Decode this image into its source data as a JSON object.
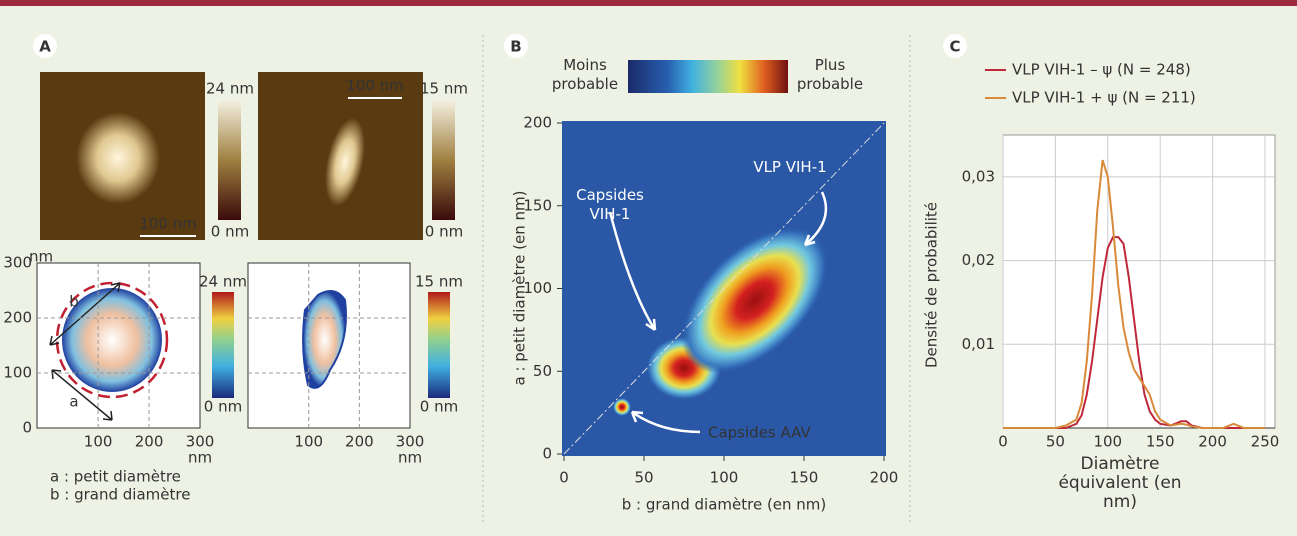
{
  "panel_a": {
    "label": "A",
    "images": [
      {
        "scale_bar": "100 nm",
        "colorbar_max": "24 nm",
        "colorbar_min": "0 nm"
      },
      {
        "scale_bar": "100 nm",
        "colorbar_max": "15 nm",
        "colorbar_min": "0 nm"
      }
    ],
    "contours": [
      {
        "colorbar_max": "24 nm",
        "colorbar_min": "0 nm",
        "xticks": [
          100,
          200,
          300
        ],
        "yticks": [
          0,
          100,
          200,
          300
        ],
        "xlim": [
          -20,
          300
        ],
        "ylim": [
          0,
          300
        ],
        "x_unit": "nm",
        "y_unit": "nm",
        "arrow_a": "a",
        "arrow_b": "b"
      },
      {
        "colorbar_max": "15 nm",
        "colorbar_min": "0 nm",
        "xticks": [
          100,
          200,
          300
        ],
        "xlim": [
          -20,
          300
        ],
        "ylim": [
          0,
          300
        ],
        "x_unit": "nm"
      }
    ],
    "legend": [
      "a : petit diamètre",
      "b : grand diamètre"
    ]
  },
  "panel_b": {
    "label": "B",
    "colorbar_low": "Moins probable",
    "colorbar_high": "Plus probable",
    "xlim": [
      0,
      200
    ],
    "ylim": [
      0,
      200
    ],
    "xticks": [
      0,
      50,
      100,
      150,
      200
    ],
    "yticks": [
      0,
      50,
      100,
      150,
      200
    ],
    "xlabel": "b : grand diamètre (en nm)",
    "ylabel": "a : petit diamètre (en nm)",
    "annotations": [
      "VLP VIH-1",
      "Capsides VIH-1",
      "Capsides AAV"
    ]
  },
  "panel_c": {
    "label": "C"
  },
  "chart_data": {
    "type": "line",
    "xlabel": "Diamètre équivalent (en nm)",
    "ylabel": "Densité de probabilité",
    "x": [
      0,
      50,
      60,
      70,
      75,
      80,
      85,
      90,
      95,
      100,
      105,
      110,
      115,
      120,
      125,
      130,
      135,
      140,
      145,
      150,
      160,
      170,
      175,
      180,
      190,
      200,
      210,
      220,
      230,
      250
    ],
    "series": [
      {
        "name": "VLP VIH-1 – ψ (N = 248)",
        "color": "#c0283a",
        "values": [
          0,
          0,
          0,
          0.0005,
          0.0015,
          0.004,
          0.008,
          0.013,
          0.018,
          0.0215,
          0.0228,
          0.0228,
          0.022,
          0.018,
          0.013,
          0.008,
          0.004,
          0.002,
          0.001,
          0.0005,
          0.0003,
          0.0008,
          0.0008,
          0.0003,
          0,
          0,
          0,
          0,
          0,
          0
        ]
      },
      {
        "name": "VLP VIH-1 + ψ (N = 211)",
        "color": "#d88a3a",
        "values": [
          0,
          0,
          0.0003,
          0.001,
          0.003,
          0.008,
          0.016,
          0.026,
          0.032,
          0.03,
          0.024,
          0.017,
          0.012,
          0.009,
          0.007,
          0.006,
          0.005,
          0.004,
          0.002,
          0.001,
          0.0003,
          0.0005,
          0.0004,
          0.0002,
          0,
          0,
          0,
          0.0005,
          0,
          0
        ]
      }
    ],
    "xlim": [
      0,
      250
    ],
    "ylim": [
      0,
      0.035
    ],
    "xticks": [
      0,
      50,
      100,
      150,
      200,
      250
    ],
    "yticks": [
      {
        "value": 0.01,
        "label": "0,01"
      },
      {
        "value": 0.02,
        "label": "0,02"
      },
      {
        "value": 0.03,
        "label": "0,03"
      }
    ],
    "grid": true
  }
}
